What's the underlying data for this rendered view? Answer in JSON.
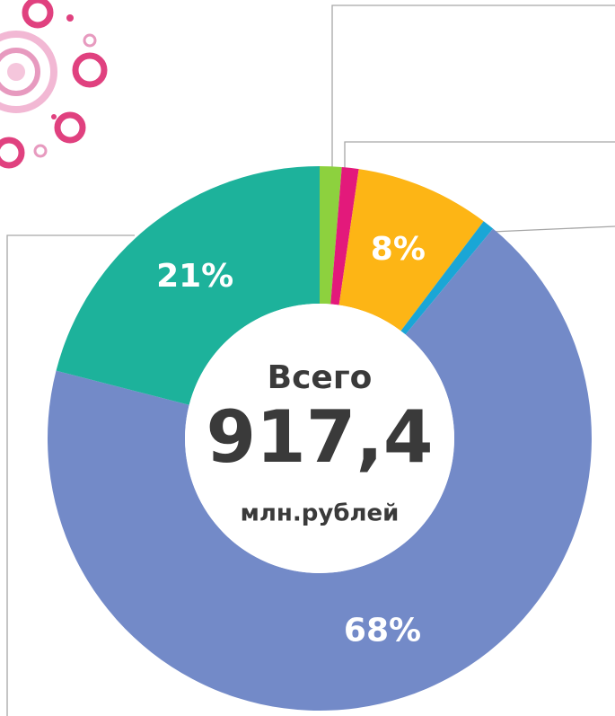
{
  "chart_data": {
    "type": "donut",
    "center_title": "Всего",
    "center_value": "917,4",
    "center_unit": "млн.рублей",
    "values": [
      1.3,
      1,
      8,
      0.7,
      68,
      21
    ],
    "value_labels": [
      null,
      null,
      "8%",
      null,
      "68%",
      "21%"
    ],
    "colors": [
      "#8dd13e",
      "#e3197b",
      "#fdb515",
      "#1aa6d6",
      "#738ac8",
      "#1db29b"
    ]
  }
}
